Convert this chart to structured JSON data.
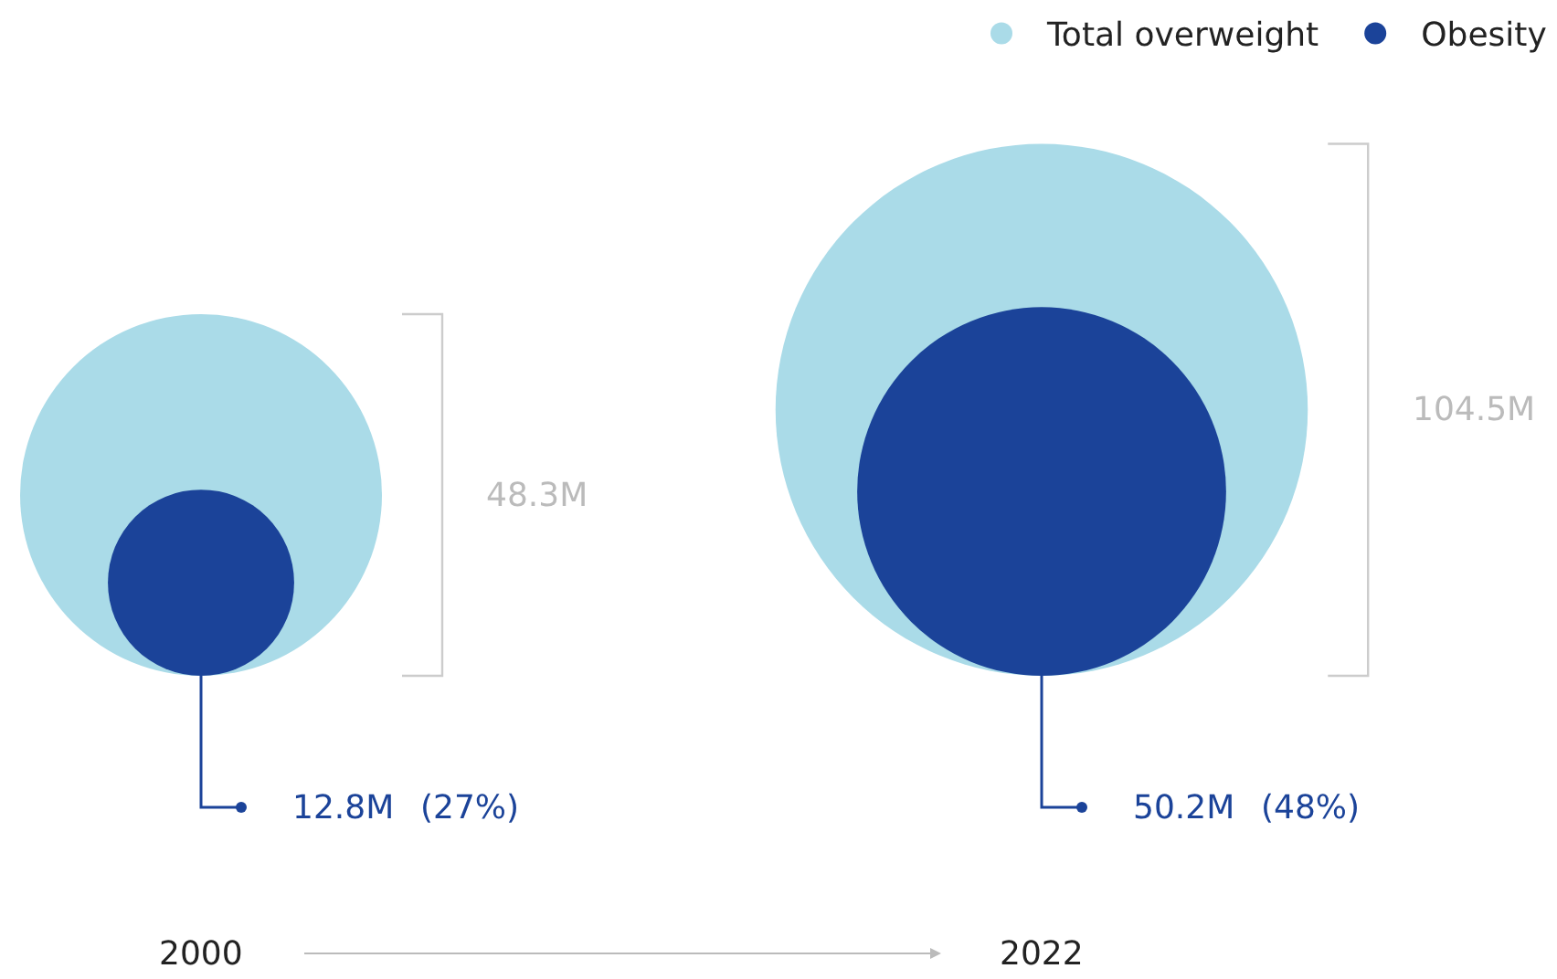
{
  "chart_data": {
    "type": "other",
    "categories": [
      "2000",
      "2022"
    ],
    "series": [
      {
        "name": "Total overweight",
        "color": "#aadbe8",
        "values": [
          48.3,
          104.5
        ],
        "value_labels": [
          "48.3M",
          "104.5M"
        ]
      },
      {
        "name": "Obesity",
        "color": "#1b4399",
        "values": [
          12.8,
          50.2
        ],
        "value_labels": [
          "12.8M",
          "50.2M"
        ]
      }
    ],
    "annotations": [
      "(27%)",
      "(48%)"
    ],
    "legend": "top right"
  }
}
